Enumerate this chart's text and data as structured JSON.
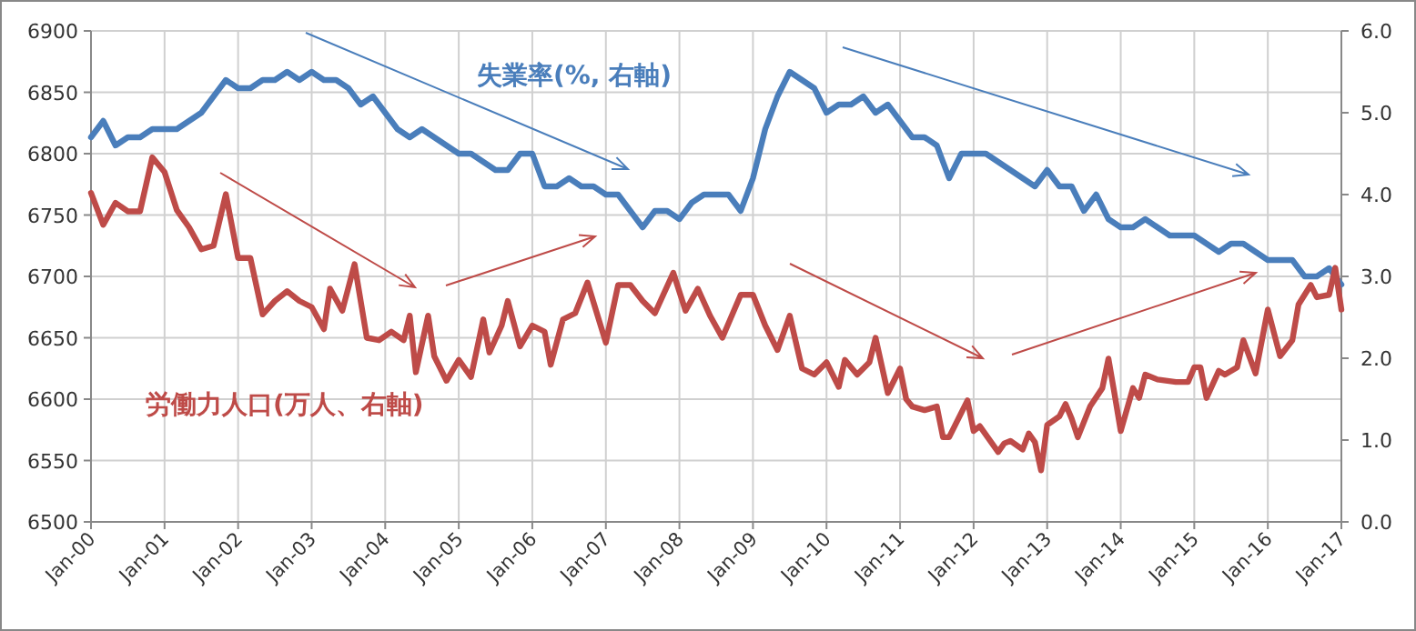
{
  "chart_data": {
    "type": "line",
    "legend": false,
    "grid": true,
    "marker": "none",
    "line_style": "solid",
    "xlim": [
      "2000-01",
      "2017-01"
    ],
    "xticks": [
      {
        "value": "2000-01",
        "label": "Jan-00"
      },
      {
        "value": "2001-01",
        "label": "Jan-01"
      },
      {
        "value": "2002-01",
        "label": "Jan-02"
      },
      {
        "value": "2003-01",
        "label": "Jan-03"
      },
      {
        "value": "2004-01",
        "label": "Jan-04"
      },
      {
        "value": "2005-01",
        "label": "Jan-05"
      },
      {
        "value": "2006-01",
        "label": "Jan-06"
      },
      {
        "value": "2007-01",
        "label": "Jan-07"
      },
      {
        "value": "2008-01",
        "label": "Jan-08"
      },
      {
        "value": "2009-01",
        "label": "Jan-09"
      },
      {
        "value": "2010-01",
        "label": "Jan-10"
      },
      {
        "value": "2011-01",
        "label": "Jan-11"
      },
      {
        "value": "2012-01",
        "label": "Jan-12"
      },
      {
        "value": "2013-01",
        "label": "Jan-13"
      },
      {
        "value": "2014-01",
        "label": "Jan-14"
      },
      {
        "value": "2015-01",
        "label": "Jan-15"
      },
      {
        "value": "2016-01",
        "label": "Jan-16"
      },
      {
        "value": "2017-01",
        "label": "Jan-17"
      }
    ],
    "ylim": [
      6500,
      6900
    ],
    "yticks": [
      6500,
      6550,
      6600,
      6650,
      6700,
      6750,
      6800,
      6850,
      6900
    ],
    "y2lim": [
      0,
      6
    ],
    "y2ticks": [
      {
        "value": 0,
        "label": "0.0"
      },
      {
        "value": 1,
        "label": "1.0"
      },
      {
        "value": 2,
        "label": "2.0"
      },
      {
        "value": 3,
        "label": "3.0"
      },
      {
        "value": 4,
        "label": "4.0"
      },
      {
        "value": 5,
        "label": "5.0"
      },
      {
        "value": 6,
        "label": "6.0"
      }
    ],
    "series": [
      {
        "name": "失業率(%, 右軸)",
        "color": "#4a7ebb",
        "axis": "y2",
        "x": [
          "2000-01",
          "2000-03",
          "2000-05",
          "2000-07",
          "2000-09",
          "2000-11",
          "2001-01",
          "2001-03",
          "2001-05",
          "2001-07",
          "2001-09",
          "2001-11",
          "2002-01",
          "2002-03",
          "2002-05",
          "2002-07",
          "2002-09",
          "2002-11",
          "2003-01",
          "2003-03",
          "2003-05",
          "2003-07",
          "2003-09",
          "2003-11",
          "2004-01",
          "2004-03",
          "2004-05",
          "2004-07",
          "2004-09",
          "2004-11",
          "2005-01",
          "2005-03",
          "2005-05",
          "2005-07",
          "2005-09",
          "2005-11",
          "2006-01",
          "2006-03",
          "2006-05",
          "2006-07",
          "2006-09",
          "2006-11",
          "2007-01",
          "2007-03",
          "2007-05",
          "2007-07",
          "2007-09",
          "2007-11",
          "2008-01",
          "2008-03",
          "2008-05",
          "2008-07",
          "2008-09",
          "2008-11",
          "2009-01",
          "2009-03",
          "2009-05",
          "2009-07",
          "2009-09",
          "2009-11",
          "2010-01",
          "2010-03",
          "2010-05",
          "2010-07",
          "2010-09",
          "2010-11",
          "2011-01",
          "2011-03",
          "2011-05",
          "2011-07",
          "2011-09",
          "2011-11",
          "2012-01",
          "2012-03",
          "2012-05",
          "2012-07",
          "2012-09",
          "2012-11",
          "2013-01",
          "2013-03",
          "2013-05",
          "2013-07",
          "2013-09",
          "2013-11",
          "2014-01",
          "2014-03",
          "2014-05",
          "2014-07",
          "2014-09",
          "2014-11",
          "2015-01",
          "2015-03",
          "2015-05",
          "2015-07",
          "2015-09",
          "2015-11",
          "2016-01",
          "2016-03",
          "2016-05",
          "2016-07",
          "2016-09",
          "2016-11",
          "2017-01"
        ],
        "values": [
          4.7,
          4.9,
          4.6,
          4.7,
          4.7,
          4.8,
          4.8,
          4.8,
          4.9,
          5.0,
          5.2,
          5.4,
          5.3,
          5.3,
          5.4,
          5.4,
          5.5,
          5.4,
          5.5,
          5.4,
          5.4,
          5.3,
          5.1,
          5.2,
          5.0,
          4.8,
          4.7,
          4.8,
          4.7,
          4.6,
          4.5,
          4.5,
          4.4,
          4.3,
          4.3,
          4.5,
          4.5,
          4.1,
          4.1,
          4.2,
          4.1,
          4.1,
          4.0,
          4.0,
          3.8,
          3.6,
          3.8,
          3.8,
          3.7,
          3.9,
          4.0,
          4.0,
          4.0,
          3.8,
          4.2,
          4.8,
          5.2,
          5.5,
          5.4,
          5.3,
          5.0,
          5.1,
          5.1,
          5.2,
          5.0,
          5.1,
          4.9,
          4.7,
          4.7,
          4.6,
          4.2,
          4.5,
          4.5,
          4.5,
          4.4,
          4.3,
          4.2,
          4.1,
          4.3,
          4.1,
          4.1,
          3.8,
          4.0,
          3.7,
          3.6,
          3.6,
          3.7,
          3.6,
          3.5,
          3.5,
          3.5,
          3.4,
          3.3,
          3.4,
          3.4,
          3.3,
          3.2,
          3.2,
          3.2,
          3.0,
          3.0,
          3.1,
          2.9
        ]
      },
      {
        "name": "労働力人口(万人、右軸)",
        "color": "#be4b48",
        "x": [
          "2000-01",
          "2000-03",
          "2000-05",
          "2000-07",
          "2000-09",
          "2000-11",
          "2001-01",
          "2001-03",
          "2001-05",
          "2001-07",
          "2001-09",
          "2001-11",
          "2002-01",
          "2002-03",
          "2002-05",
          "2002-07",
          "2002-09",
          "2002-11",
          "2003-01",
          "2003-03",
          "2003-04",
          "2003-06",
          "2003-08",
          "2003-10",
          "2003-12",
          "2004-02",
          "2004-04",
          "2004-05",
          "2004-06",
          "2004-08",
          "2004-09",
          "2004-11",
          "2005-01",
          "2005-03",
          "2005-05",
          "2005-06",
          "2005-08",
          "2005-09",
          "2005-11",
          "2006-01",
          "2006-03",
          "2006-04",
          "2006-06",
          "2006-08",
          "2006-10",
          "2007-01",
          "2007-03",
          "2007-05",
          "2007-07",
          "2007-09",
          "2007-12",
          "2008-02",
          "2008-04",
          "2008-06",
          "2008-08",
          "2008-11",
          "2009-01",
          "2009-03",
          "2009-05",
          "2009-07",
          "2009-09",
          "2009-11",
          "2010-01",
          "2010-03",
          "2010-04",
          "2010-06",
          "2010-08",
          "2010-09",
          "2010-11",
          "2011-01",
          "2011-02",
          "2011-03",
          "2011-05",
          "2011-07",
          "2011-08",
          "2011-09",
          "2011-11",
          "2011-12",
          "2012-01",
          "2012-02",
          "2012-04",
          "2012-05",
          "2012-06",
          "2012-07",
          "2012-09",
          "2012-10",
          "2012-11",
          "2012-12",
          "2013-01",
          "2013-03",
          "2013-04",
          "2013-05",
          "2013-06",
          "2013-08",
          "2013-10",
          "2013-11",
          "2013-12",
          "2014-01",
          "2014-03",
          "2014-04",
          "2014-05",
          "2014-07",
          "2014-10",
          "2014-12",
          "2015-01",
          "2015-02",
          "2015-03",
          "2015-05",
          "2015-06",
          "2015-08",
          "2015-09",
          "2015-11",
          "2016-01",
          "2016-03",
          "2016-05",
          "2016-06",
          "2016-08",
          "2016-09",
          "2016-11",
          "2016-12",
          "2017-01"
        ],
        "values": [
          6768,
          6742,
          6760,
          6753,
          6753,
          6797,
          6785,
          6754,
          6740,
          6722,
          6725,
          6767,
          6715,
          6715,
          6669,
          6680,
          6688,
          6680,
          6675,
          6657,
          6690,
          6672,
          6710,
          6650,
          6648,
          6655,
          6648,
          6668,
          6622,
          6668,
          6635,
          6615,
          6632,
          6618,
          6665,
          6638,
          6660,
          6680,
          6643,
          6660,
          6655,
          6628,
          6665,
          6670,
          6695,
          6646,
          6693,
          6693,
          6680,
          6670,
          6703,
          6672,
          6690,
          6668,
          6650,
          6685,
          6685,
          6660,
          6640,
          6668,
          6625,
          6620,
          6630,
          6610,
          6632,
          6620,
          6630,
          6650,
          6605,
          6625,
          6600,
          6594,
          6591,
          6594,
          6569,
          6569,
          6589,
          6599,
          6574,
          6578,
          6564,
          6557,
          6564,
          6566,
          6559,
          6572,
          6565,
          6542,
          6579,
          6586,
          6596,
          6584,
          6569,
          6594,
          6609,
          6633,
          6604,
          6574,
          6609,
          6601,
          6620,
          6616,
          6614,
          6614,
          6626,
          6626,
          6601,
          6623,
          6620,
          6626,
          6648,
          6621,
          6673,
          6635,
          6648,
          6677,
          6693,
          6683,
          6685,
          6707,
          6673
        ]
      }
    ]
  }
}
